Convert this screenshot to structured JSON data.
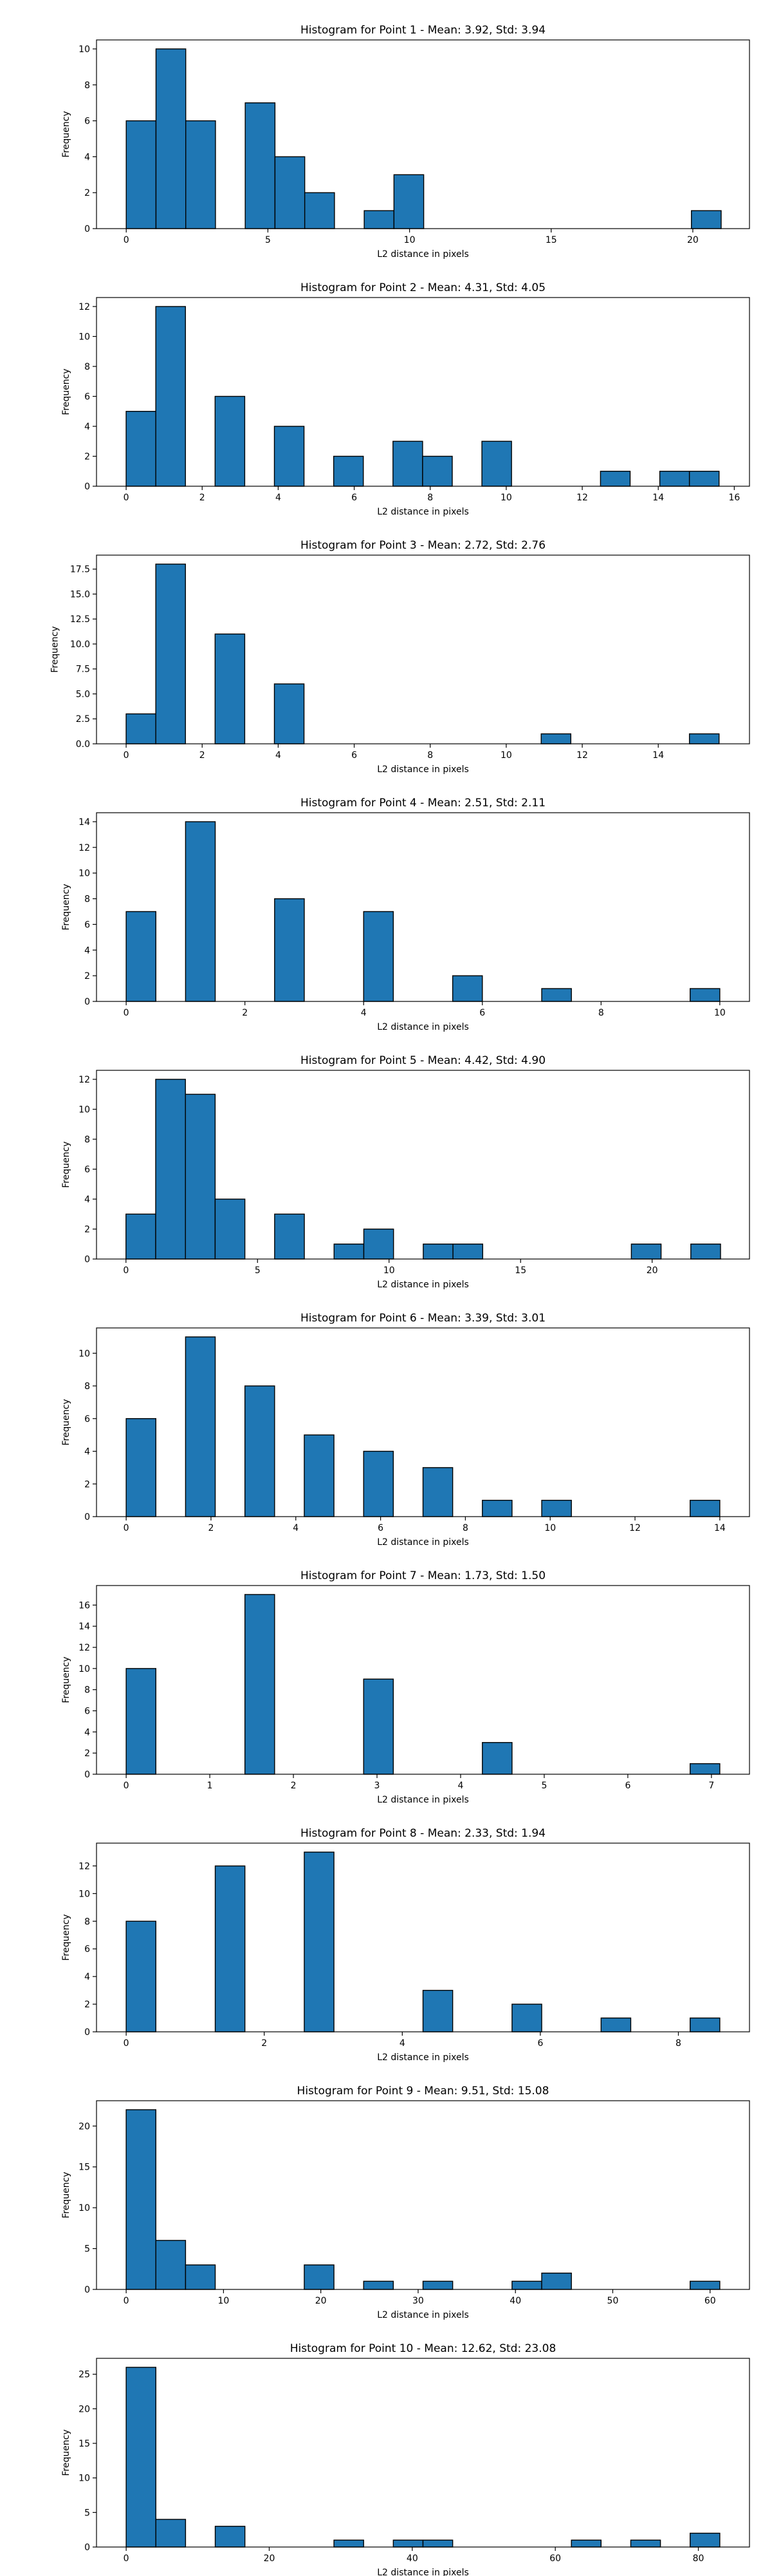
{
  "style": {
    "bar_color": "#1f77b4",
    "edge_color": "#000000",
    "axes_color": "#000000",
    "background": "#ffffff"
  },
  "chart_data": [
    {
      "type": "bar",
      "title": "Histogram for Point 1 - Mean: 3.92, Std: 3.94",
      "xlabel": "L2 distance in pixels",
      "ylabel": "Frequency",
      "grid": false,
      "xlim": [
        -1.05,
        22.0
      ],
      "ylim": [
        0,
        10.5
      ],
      "xticks": [
        0,
        5,
        10,
        15,
        20
      ],
      "yticks": [
        0,
        2,
        4,
        6,
        8,
        10
      ],
      "bins": [
        {
          "x0": 0.0,
          "x1": 1.05,
          "count": 6
        },
        {
          "x0": 1.05,
          "x1": 2.1,
          "count": 10
        },
        {
          "x0": 2.1,
          "x1": 3.15,
          "count": 6
        },
        {
          "x0": 4.2,
          "x1": 5.25,
          "count": 7
        },
        {
          "x0": 5.25,
          "x1": 6.3,
          "count": 4
        },
        {
          "x0": 6.3,
          "x1": 7.35,
          "count": 2
        },
        {
          "x0": 8.4,
          "x1": 9.45,
          "count": 1
        },
        {
          "x0": 9.45,
          "x1": 10.5,
          "count": 3
        },
        {
          "x0": 19.95,
          "x1": 21.0,
          "count": 1
        }
      ]
    },
    {
      "type": "bar",
      "title": "Histogram for Point 2 - Mean: 4.31, Std: 4.05",
      "xlabel": "L2 distance in pixels",
      "ylabel": "Frequency",
      "grid": false,
      "xlim": [
        -0.78,
        16.4
      ],
      "ylim": [
        0,
        12.6
      ],
      "xticks": [
        0,
        2,
        4,
        6,
        8,
        10,
        12,
        14,
        16
      ],
      "yticks": [
        0,
        2,
        4,
        6,
        8,
        10,
        12
      ],
      "bins": [
        {
          "x0": 0.0,
          "x1": 0.78,
          "count": 5
        },
        {
          "x0": 0.78,
          "x1": 1.56,
          "count": 12
        },
        {
          "x0": 2.34,
          "x1": 3.12,
          "count": 6
        },
        {
          "x0": 3.9,
          "x1": 4.68,
          "count": 4
        },
        {
          "x0": 5.46,
          "x1": 6.24,
          "count": 2
        },
        {
          "x0": 7.02,
          "x1": 7.8,
          "count": 3
        },
        {
          "x0": 7.8,
          "x1": 8.58,
          "count": 2
        },
        {
          "x0": 9.36,
          "x1": 10.14,
          "count": 3
        },
        {
          "x0": 12.48,
          "x1": 13.26,
          "count": 1
        },
        {
          "x0": 14.04,
          "x1": 14.82,
          "count": 1
        },
        {
          "x0": 14.82,
          "x1": 15.6,
          "count": 1
        }
      ]
    },
    {
      "type": "bar",
      "title": "Histogram for Point 3 - Mean: 2.72, Std: 2.76",
      "xlabel": "L2 distance in pixels",
      "ylabel": "Frequency",
      "grid": false,
      "xlim": [
        -0.78,
        16.4
      ],
      "ylim": [
        0,
        18.9
      ],
      "xticks": [
        0,
        2,
        4,
        6,
        8,
        10,
        12,
        14
      ],
      "yticks": [
        0.0,
        2.5,
        5.0,
        7.5,
        10.0,
        12.5,
        15.0,
        17.5
      ],
      "ytick_decimals": 1,
      "bins": [
        {
          "x0": 0.0,
          "x1": 0.78,
          "count": 3
        },
        {
          "x0": 0.78,
          "x1": 1.56,
          "count": 18
        },
        {
          "x0": 2.34,
          "x1": 3.12,
          "count": 11
        },
        {
          "x0": 3.9,
          "x1": 4.68,
          "count": 6
        },
        {
          "x0": 10.92,
          "x1": 11.7,
          "count": 1
        },
        {
          "x0": 14.82,
          "x1": 15.6,
          "count": 1
        }
      ]
    },
    {
      "type": "bar",
      "title": "Histogram for Point 4 - Mean: 2.51, Std: 2.11",
      "xlabel": "L2 distance in pixels",
      "ylabel": "Frequency",
      "grid": false,
      "xlim": [
        -0.5,
        10.5
      ],
      "ylim": [
        0,
        14.7
      ],
      "xticks": [
        0,
        2,
        4,
        6,
        8,
        10
      ],
      "yticks": [
        0,
        2,
        4,
        6,
        8,
        10,
        12,
        14
      ],
      "bins": [
        {
          "x0": 0.0,
          "x1": 0.5,
          "count": 7
        },
        {
          "x0": 1.0,
          "x1": 1.5,
          "count": 14
        },
        {
          "x0": 2.5,
          "x1": 3.0,
          "count": 8
        },
        {
          "x0": 4.0,
          "x1": 4.5,
          "count": 7
        },
        {
          "x0": 5.5,
          "x1": 6.0,
          "count": 2
        },
        {
          "x0": 7.0,
          "x1": 7.5,
          "count": 1
        },
        {
          "x0": 9.5,
          "x1": 10.0,
          "count": 1
        }
      ]
    },
    {
      "type": "bar",
      "title": "Histogram for Point 5 - Mean: 4.42, Std: 4.90",
      "xlabel": "L2 distance in pixels",
      "ylabel": "Frequency",
      "grid": false,
      "xlim": [
        -1.12,
        23.7
      ],
      "ylim": [
        0,
        12.6
      ],
      "xticks": [
        0,
        5,
        10,
        15,
        20
      ],
      "yticks": [
        0,
        2,
        4,
        6,
        8,
        10,
        12
      ],
      "bins": [
        {
          "x0": 0.0,
          "x1": 1.13,
          "count": 3
        },
        {
          "x0": 1.13,
          "x1": 2.26,
          "count": 12
        },
        {
          "x0": 2.26,
          "x1": 3.39,
          "count": 11
        },
        {
          "x0": 3.39,
          "x1": 4.52,
          "count": 4
        },
        {
          "x0": 5.65,
          "x1": 6.78,
          "count": 3
        },
        {
          "x0": 7.91,
          "x1": 9.04,
          "count": 1
        },
        {
          "x0": 9.04,
          "x1": 10.17,
          "count": 2
        },
        {
          "x0": 11.3,
          "x1": 12.43,
          "count": 1
        },
        {
          "x0": 12.43,
          "x1": 13.56,
          "count": 1
        },
        {
          "x0": 19.21,
          "x1": 20.34,
          "count": 1
        },
        {
          "x0": 21.47,
          "x1": 22.6,
          "count": 1
        }
      ]
    },
    {
      "type": "bar",
      "title": "Histogram for Point 6 - Mean: 3.39, Std: 3.01",
      "xlabel": "L2 distance in pixels",
      "ylabel": "Frequency",
      "grid": false,
      "xlim": [
        -0.7,
        14.7
      ],
      "ylim": [
        0,
        11.55
      ],
      "xticks": [
        0,
        2,
        4,
        6,
        8,
        10,
        12,
        14
      ],
      "yticks": [
        0,
        2,
        4,
        6,
        8,
        10
      ],
      "bins": [
        {
          "x0": 0.0,
          "x1": 0.7,
          "count": 6
        },
        {
          "x0": 1.4,
          "x1": 2.1,
          "count": 11
        },
        {
          "x0": 2.8,
          "x1": 3.5,
          "count": 8
        },
        {
          "x0": 4.2,
          "x1": 4.9,
          "count": 5
        },
        {
          "x0": 5.6,
          "x1": 6.3,
          "count": 4
        },
        {
          "x0": 7.0,
          "x1": 7.7,
          "count": 3
        },
        {
          "x0": 8.4,
          "x1": 9.1,
          "count": 1
        },
        {
          "x0": 9.8,
          "x1": 10.5,
          "count": 1
        },
        {
          "x0": 13.3,
          "x1": 14.0,
          "count": 1
        }
      ]
    },
    {
      "type": "bar",
      "title": "Histogram for Point 7 - Mean: 1.73, Std: 1.50",
      "xlabel": "L2 distance in pixels",
      "ylabel": "Frequency",
      "grid": false,
      "xlim": [
        -0.355,
        7.455
      ],
      "ylim": [
        0,
        17.85
      ],
      "xticks": [
        0,
        1,
        2,
        3,
        4,
        5,
        6,
        7
      ],
      "yticks": [
        0,
        2,
        4,
        6,
        8,
        10,
        12,
        14,
        16
      ],
      "bins": [
        {
          "x0": 0.0,
          "x1": 0.355,
          "count": 10
        },
        {
          "x0": 1.42,
          "x1": 1.775,
          "count": 17
        },
        {
          "x0": 2.84,
          "x1": 3.195,
          "count": 9
        },
        {
          "x0": 4.26,
          "x1": 4.615,
          "count": 3
        },
        {
          "x0": 6.745,
          "x1": 7.1,
          "count": 1
        }
      ]
    },
    {
      "type": "bar",
      "title": "Histogram for Point 8 - Mean: 2.33, Std: 1.94",
      "xlabel": "L2 distance in pixels",
      "ylabel": "Frequency",
      "grid": false,
      "xlim": [
        -0.43,
        9.03
      ],
      "ylim": [
        0,
        13.65
      ],
      "xticks": [
        0,
        2,
        4,
        6,
        8
      ],
      "yticks": [
        0,
        2,
        4,
        6,
        8,
        10,
        12
      ],
      "bins": [
        {
          "x0": 0.0,
          "x1": 0.43,
          "count": 8
        },
        {
          "x0": 1.29,
          "x1": 1.72,
          "count": 12
        },
        {
          "x0": 2.58,
          "x1": 3.01,
          "count": 13
        },
        {
          "x0": 4.3,
          "x1": 4.73,
          "count": 3
        },
        {
          "x0": 5.59,
          "x1": 6.02,
          "count": 2
        },
        {
          "x0": 6.88,
          "x1": 7.31,
          "count": 1
        },
        {
          "x0": 8.17,
          "x1": 8.6,
          "count": 1
        }
      ]
    },
    {
      "type": "bar",
      "title": "Histogram for Point 9 - Mean: 9.51, Std: 15.08",
      "xlabel": "L2 distance in pixels",
      "ylabel": "Frequency",
      "grid": false,
      "xlim": [
        -3.05,
        64.05
      ],
      "ylim": [
        0,
        23.1
      ],
      "xticks": [
        0,
        10,
        20,
        30,
        40,
        50,
        60
      ],
      "yticks": [
        0,
        5,
        10,
        15,
        20
      ],
      "bins": [
        {
          "x0": 0.0,
          "x1": 3.05,
          "count": 22
        },
        {
          "x0": 3.05,
          "x1": 6.1,
          "count": 6
        },
        {
          "x0": 6.1,
          "x1": 9.15,
          "count": 3
        },
        {
          "x0": 18.3,
          "x1": 21.35,
          "count": 3
        },
        {
          "x0": 24.4,
          "x1": 27.45,
          "count": 1
        },
        {
          "x0": 30.5,
          "x1": 33.55,
          "count": 1
        },
        {
          "x0": 39.65,
          "x1": 42.7,
          "count": 1
        },
        {
          "x0": 42.7,
          "x1": 45.75,
          "count": 2
        },
        {
          "x0": 57.95,
          "x1": 61.0,
          "count": 1
        }
      ]
    },
    {
      "type": "bar",
      "title": "Histogram for Point 10 - Mean: 12.62, Std: 23.08",
      "xlabel": "L2 distance in pixels",
      "ylabel": "Frequency",
      "grid": false,
      "xlim": [
        -4.15,
        87.15
      ],
      "ylim": [
        0,
        27.3
      ],
      "xticks": [
        0,
        20,
        40,
        60,
        80
      ],
      "yticks": [
        0,
        5,
        10,
        15,
        20,
        25
      ],
      "bins": [
        {
          "x0": 0.0,
          "x1": 4.15,
          "count": 26
        },
        {
          "x0": 4.15,
          "x1": 8.3,
          "count": 4
        },
        {
          "x0": 12.45,
          "x1": 16.6,
          "count": 3
        },
        {
          "x0": 29.05,
          "x1": 33.2,
          "count": 1
        },
        {
          "x0": 37.35,
          "x1": 41.5,
          "count": 1
        },
        {
          "x0": 41.5,
          "x1": 45.65,
          "count": 1
        },
        {
          "x0": 62.25,
          "x1": 66.4,
          "count": 1
        },
        {
          "x0": 70.55,
          "x1": 74.7,
          "count": 1
        },
        {
          "x0": 78.85,
          "x1": 83.0,
          "count": 2
        }
      ]
    }
  ]
}
